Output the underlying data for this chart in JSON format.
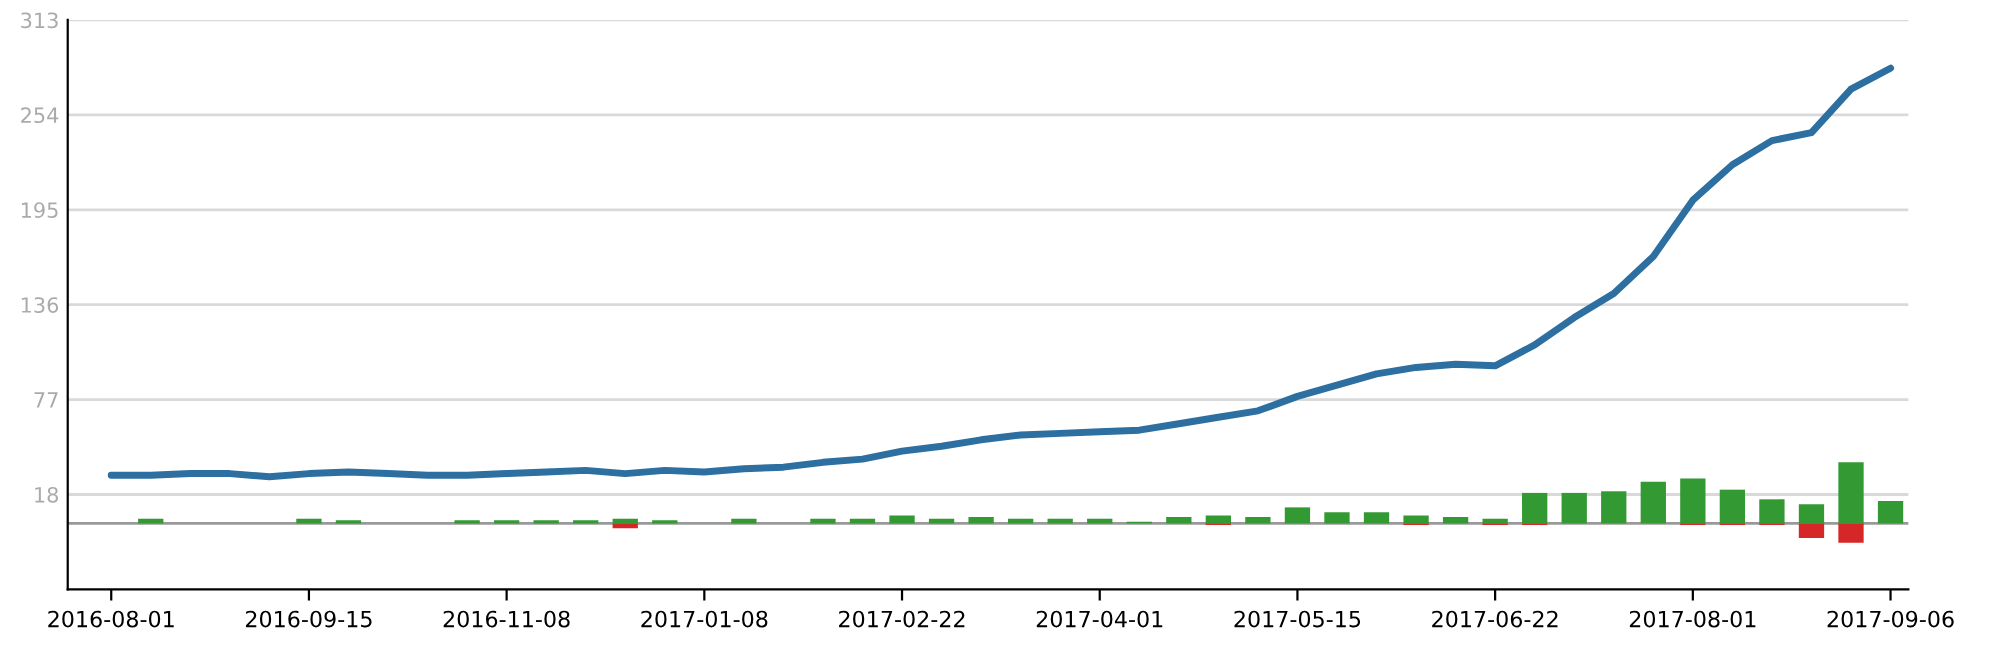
{
  "chart_data": {
    "type": "bar",
    "categories": [
      "2016-08-01",
      null,
      null,
      null,
      null,
      "2016-09-15",
      null,
      null,
      null,
      null,
      "2016-11-08",
      null,
      null,
      null,
      null,
      "2017-01-08",
      null,
      null,
      null,
      null,
      "2017-02-22",
      null,
      null,
      null,
      null,
      "2017-04-01",
      null,
      null,
      null,
      null,
      "2017-05-15",
      null,
      null,
      null,
      null,
      "2017-06-22",
      null,
      null,
      null,
      null,
      "2017-08-01",
      null,
      null,
      null,
      null,
      "2017-09-06"
    ],
    "series": [
      {
        "color": "#339933",
        "values": [
          null,
          3,
          null,
          null,
          null,
          3,
          2,
          null,
          null,
          2,
          2,
          2,
          2,
          3,
          2,
          null,
          3,
          null,
          3,
          3,
          5,
          3,
          4,
          3,
          3,
          3,
          1,
          4,
          5,
          4,
          10,
          7,
          7,
          5,
          4,
          3,
          19,
          19,
          20,
          26,
          28,
          21,
          15,
          12,
          38,
          14
        ]
      },
      {
        "color": "#d62728",
        "values": [
          null,
          null,
          null,
          null,
          null,
          null,
          null,
          null,
          null,
          null,
          null,
          null,
          null,
          -3,
          null,
          null,
          null,
          null,
          null,
          null,
          null,
          null,
          null,
          null,
          null,
          null,
          null,
          null,
          -1,
          null,
          null,
          null,
          null,
          -1,
          null,
          -1,
          -1,
          null,
          null,
          null,
          -1,
          -1,
          -1,
          -9,
          -12,
          null
        ]
      },
      {
        "type": "line",
        "color": "#2c6fa0",
        "values": [
          30,
          30,
          31,
          31,
          29,
          31,
          32,
          31,
          30,
          30,
          31,
          32,
          33,
          31,
          33,
          32,
          34,
          35,
          38,
          40,
          45,
          48,
          52,
          55,
          56,
          57,
          58,
          62,
          66,
          70,
          79,
          86,
          93,
          97,
          99,
          98,
          111,
          128,
          143,
          166,
          201,
          223,
          238,
          243,
          270,
          283
        ]
      }
    ],
    "ylim": [
      -41,
      313
    ],
    "yticks": [
      18,
      77,
      136,
      195,
      254,
      313
    ],
    "grid": "y",
    "ref_lines": [
      {
        "axis": "y",
        "value": 0,
        "color": "#999999"
      }
    ]
  }
}
